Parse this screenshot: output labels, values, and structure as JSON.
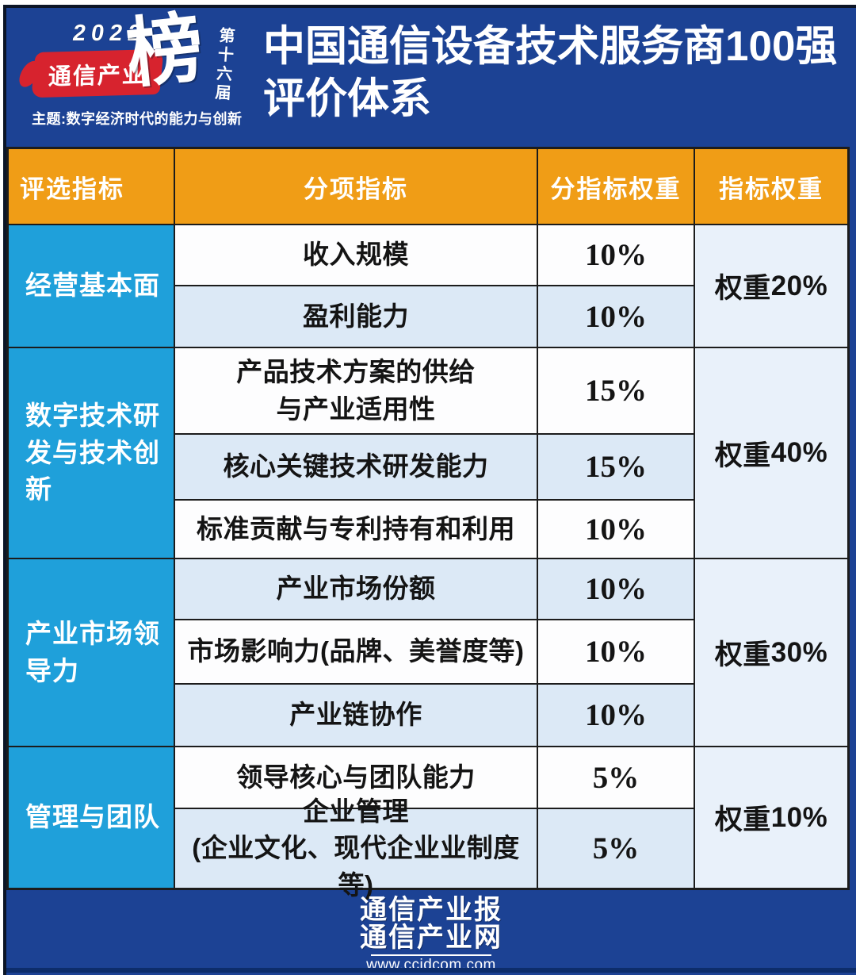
{
  "masthead": {
    "logo": {
      "year": "2022",
      "brand": "通信产业",
      "stamp": "榜",
      "edition": "第十六届",
      "theme": "主题:数字经济时代的能力与创新"
    },
    "title_line1": "中国通信设备技术服务商100强",
    "title_line2": "评价体系"
  },
  "table": {
    "columns": [
      "评选指标",
      "分项指标",
      "分指标权重",
      "指标权重"
    ],
    "sections": [
      {
        "category": "经营基本面",
        "weight_prefix": "权重",
        "weight_value": "20%",
        "rows": [
          {
            "name": "收入规模",
            "pct": "10%"
          },
          {
            "name": "盈利能力",
            "pct": "10%"
          }
        ]
      },
      {
        "category": "数字技术研发与技术创新",
        "weight_prefix": "权重",
        "weight_value": "40%",
        "rows": [
          {
            "name": "产品技术方案的供给\n与产业适用性",
            "pct": "15%"
          },
          {
            "name": "核心关键技术研发能力",
            "pct": "15%"
          },
          {
            "name": "标准贡献与专利持有和利用",
            "pct": "10%"
          }
        ]
      },
      {
        "category": "产业市场领导力",
        "weight_prefix": "权重",
        "weight_value": "30%",
        "rows": [
          {
            "name": "产业市场份额",
            "pct": "10%"
          },
          {
            "name": "市场影响力(品牌、美誉度等)",
            "pct": "10%"
          },
          {
            "name": "产业链协作",
            "pct": "10%"
          }
        ]
      },
      {
        "category": "管理与团队",
        "weight_prefix": "权重",
        "weight_value": "10%",
        "rows": [
          {
            "name": "领导核心与团队能力",
            "pct": "5%"
          },
          {
            "name": "企业管理\n(企业文化、现代企业业制度等)",
            "pct": "5%"
          }
        ]
      }
    ]
  },
  "footer": {
    "brand_line1": "通信产业报",
    "brand_line2": "通信产业网",
    "url": "www.ccidcom.com"
  },
  "colors": {
    "background_blue": "#1C4294",
    "header_orange": "#F09D16",
    "category_cyan": "#1FA0DA",
    "row_light": "#DCE9F6",
    "row_white": "#FDFDFE",
    "weight_cell": "#E9F1FA",
    "grid_line": "#1C1C1C",
    "brush_red": "#D7232E",
    "footer_band_navy": "#0D2D6B"
  },
  "chart_data": {
    "type": "table",
    "title": "中国通信设备技术服务商100强评价体系",
    "columns": [
      "评选指标",
      "分项指标",
      "分指标权重",
      "指标权重"
    ],
    "rows": [
      [
        "经营基本面",
        "收入规模",
        "10%",
        "权重20%"
      ],
      [
        "经营基本面",
        "盈利能力",
        "10%",
        "权重20%"
      ],
      [
        "数字技术研发与技术创新",
        "产品技术方案的供给与产业适用性",
        "15%",
        "权重40%"
      ],
      [
        "数字技术研发与技术创新",
        "核心关键技术研发能力",
        "15%",
        "权重40%"
      ],
      [
        "数字技术研发与技术创新",
        "标准贡献与专利持有和利用",
        "10%",
        "权重40%"
      ],
      [
        "产业市场领导力",
        "产业市场份额",
        "10%",
        "权重30%"
      ],
      [
        "产业市场领导力",
        "市场影响力(品牌、美誉度等)",
        "10%",
        "权重30%"
      ],
      [
        "产业市场领导力",
        "产业链协作",
        "10%",
        "权重30%"
      ],
      [
        "管理与团队",
        "领导核心与团队能力",
        "5%",
        "权重10%"
      ],
      [
        "管理与团队",
        "企业管理(企业文化、现代企业业制度等)",
        "5%",
        "权重10%"
      ]
    ]
  }
}
